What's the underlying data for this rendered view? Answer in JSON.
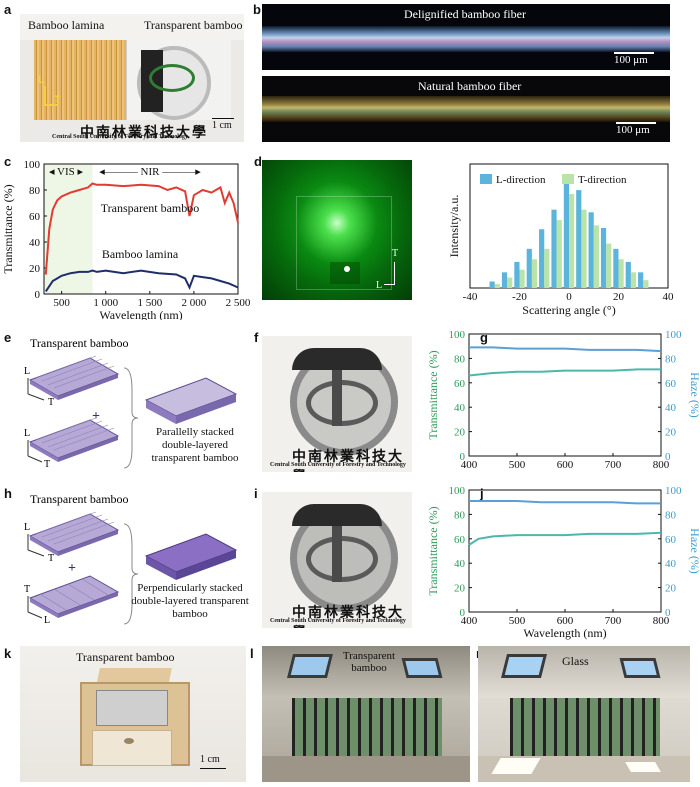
{
  "panels": {
    "a": {
      "label": "a",
      "left_text": "Bamboo lamina",
      "right_text": "Transparent bamboo",
      "axis_l": "L",
      "axis_t": "T",
      "scale": "1 cm",
      "caption": "Central South University of Forestry and Technology"
    },
    "b": {
      "label": "b",
      "top_title": "Delignified bamboo fiber",
      "bottom_title": "Natural bamboo fiber",
      "scale_top": "100 μm",
      "scale_bottom": "100 μm"
    },
    "c": {
      "label": "c"
    },
    "d": {
      "label": "d",
      "axis_t": "T",
      "axis_l": "L"
    },
    "e": {
      "label": "e",
      "title": "Transparent bamboo",
      "axis_l1": "L",
      "axis_t1": "T",
      "axis_l2": "L",
      "axis_t2": "T",
      "plus": "+",
      "result": "Parallelly stacked double-layered transparent bamboo"
    },
    "f": {
      "label": "f",
      "caption": "Central South University of Forestry and Technology"
    },
    "g": {
      "label": "g"
    },
    "h": {
      "label": "h",
      "title": "Transparent bamboo",
      "axis_l1": "L",
      "axis_t1": "T",
      "axis_t2": "T",
      "axis_l2": "L",
      "plus": "+",
      "result": "Perpendicularly stacked double-layered transparent bamboo"
    },
    "i": {
      "label": "i",
      "caption": "Central South University of Forestry and Technology"
    },
    "j": {
      "label": "j"
    },
    "k": {
      "label": "k",
      "title": "Transparent bamboo",
      "scale": "1 cm"
    },
    "l": {
      "label": "l",
      "title": "Transparent bamboo"
    },
    "m": {
      "label": "m",
      "title": "Glass"
    }
  },
  "chart_data": [
    {
      "id": "c",
      "type": "line",
      "xlabel": "Wavelength (nm)",
      "ylabel": "Transmittance (%)",
      "xlim": [
        300,
        2500
      ],
      "ylim": [
        0,
        100
      ],
      "xticks": [
        "500",
        "1 000",
        "1 500",
        "2 000",
        "2 500"
      ],
      "yticks": [
        "0",
        "20",
        "40",
        "60",
        "80",
        "100"
      ],
      "region_labels": [
        "VIS",
        "NIR"
      ],
      "series": [
        {
          "name": "Transparent bamboo",
          "color": "#e03c31",
          "x": [
            320,
            360,
            400,
            450,
            500,
            600,
            700,
            800,
            850,
            900,
            1000,
            1200,
            1400,
            1600,
            1700,
            1800,
            1900,
            1950,
            2000,
            2100,
            2200,
            2300,
            2350,
            2400,
            2450,
            2500
          ],
          "y": [
            15,
            50,
            65,
            72,
            75,
            78,
            80,
            82,
            85,
            84,
            84,
            83,
            84,
            83,
            80,
            82,
            79,
            60,
            76,
            80,
            78,
            82,
            70,
            78,
            70,
            55
          ]
        },
        {
          "name": "Bamboo lamina",
          "color": "#1f2d6b",
          "x": [
            320,
            360,
            400,
            500,
            600,
            700,
            800,
            850,
            900,
            1000,
            1200,
            1400,
            1600,
            1800,
            1900,
            1950,
            2000,
            2100,
            2200,
            2300,
            2400,
            2500
          ],
          "y": [
            2,
            6,
            10,
            14,
            16,
            17,
            17,
            18,
            17,
            18,
            16,
            18,
            16,
            15,
            12,
            5,
            14,
            13,
            12,
            10,
            8,
            5
          ]
        }
      ]
    },
    {
      "id": "d",
      "type": "bar",
      "xlabel": "Scattering angle (°)",
      "ylabel": "Intensity/a.u.",
      "xlim": [
        -40,
        40
      ],
      "xticks": [
        "-40",
        "-20",
        "0",
        "20",
        "40"
      ],
      "categories": [
        -30,
        -25,
        -20,
        -15,
        -10,
        -5,
        0,
        5,
        10,
        15,
        20,
        25,
        30
      ],
      "series": [
        {
          "name": "L-direction",
          "color": "#5ab4dc",
          "values": [
            0.05,
            0.12,
            0.2,
            0.3,
            0.45,
            0.6,
            0.85,
            0.75,
            0.58,
            0.46,
            0.3,
            0.2,
            0.12
          ]
        },
        {
          "name": "T-direction",
          "color": "#b9e3a8",
          "values": [
            0.03,
            0.08,
            0.14,
            0.22,
            0.3,
            0.52,
            0.72,
            0.6,
            0.48,
            0.34,
            0.22,
            0.12,
            0.06
          ]
        }
      ]
    },
    {
      "id": "g",
      "type": "line",
      "xlabel": "",
      "ylabel": "Transmittance (%)",
      "y2label": "Haze (%)",
      "xlim": [
        400,
        800
      ],
      "ylim": [
        0,
        100
      ],
      "xticks": [
        "400",
        "500",
        "600",
        "700",
        "800"
      ],
      "yticks": [
        "0",
        "20",
        "40",
        "60",
        "80",
        "100"
      ],
      "series": [
        {
          "name": "Transmittance",
          "color": "#4cb7ad",
          "x": [
            400,
            450,
            500,
            550,
            600,
            650,
            700,
            750,
            800
          ],
          "y": [
            66,
            68,
            69,
            69,
            70,
            70,
            70,
            71,
            71
          ]
        },
        {
          "name": "Haze",
          "color": "#5aa0d6",
          "x": [
            400,
            450,
            500,
            550,
            600,
            650,
            700,
            750,
            800
          ],
          "y": [
            89,
            89,
            88,
            88,
            88,
            87,
            87,
            87,
            86
          ]
        }
      ]
    },
    {
      "id": "j",
      "type": "line",
      "xlabel": "Wavelength (nm)",
      "ylabel": "Transmittance (%)",
      "y2label": "Haze (%)",
      "xlim": [
        400,
        800
      ],
      "ylim": [
        0,
        100
      ],
      "xticks": [
        "400",
        "500",
        "600",
        "700",
        "800"
      ],
      "yticks": [
        "0",
        "20",
        "40",
        "60",
        "80",
        "100"
      ],
      "series": [
        {
          "name": "Transmittance",
          "color": "#4cb7ad",
          "x": [
            400,
            420,
            450,
            500,
            550,
            600,
            650,
            700,
            750,
            800
          ],
          "y": [
            55,
            60,
            62,
            63,
            63,
            63,
            64,
            64,
            64,
            65
          ]
        },
        {
          "name": "Haze",
          "color": "#5aa0d6",
          "x": [
            400,
            450,
            500,
            550,
            600,
            650,
            700,
            750,
            800
          ],
          "y": [
            91,
            91,
            91,
            90,
            90,
            90,
            90,
            89,
            89
          ]
        }
      ]
    }
  ]
}
